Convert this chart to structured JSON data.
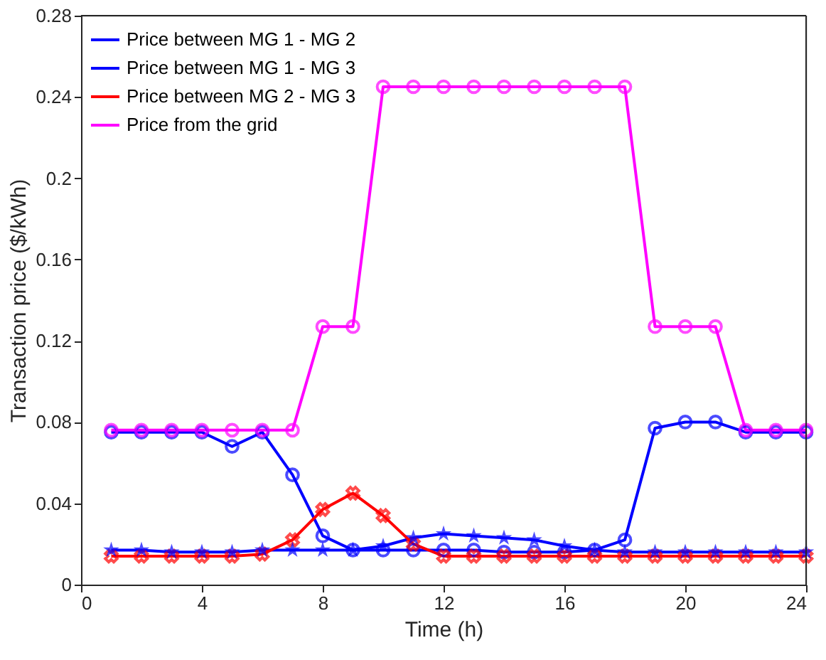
{
  "chart_data": {
    "type": "line",
    "xlabel": "Time (h)",
    "ylabel": "Transaction price ($/kWh)",
    "x": [
      1,
      2,
      3,
      4,
      5,
      6,
      7,
      8,
      9,
      10,
      11,
      12,
      13,
      14,
      15,
      16,
      17,
      18,
      19,
      20,
      21,
      22,
      23,
      24
    ],
    "xlim": [
      0,
      24
    ],
    "xticks": [
      0,
      4,
      8,
      12,
      16,
      20,
      24
    ],
    "ylim": [
      0,
      0.28
    ],
    "yticks": [
      0,
      0.04,
      0.08,
      0.12,
      0.16,
      0.2,
      0.24,
      0.28
    ],
    "grid": false,
    "legend": "top left",
    "line_style": "solid",
    "series": [
      {
        "name": "Price between MG 1 - MG 2",
        "color": "#0000ff",
        "marker": "circle",
        "values": [
          0.075,
          0.075,
          0.075,
          0.075,
          0.068,
          0.075,
          0.054,
          0.024,
          0.017,
          0.017,
          0.017,
          0.017,
          0.017,
          0.016,
          0.016,
          0.016,
          0.017,
          0.022,
          0.077,
          0.08,
          0.08,
          0.075,
          0.075,
          0.075
        ]
      },
      {
        "name": "Price between MG 1 - MG 3",
        "color": "#0000ff",
        "marker": "star",
        "values": [
          0.017,
          0.017,
          0.016,
          0.016,
          0.016,
          0.017,
          0.017,
          0.017,
          0.017,
          0.019,
          0.023,
          0.025,
          0.024,
          0.023,
          0.022,
          0.019,
          0.017,
          0.016,
          0.016,
          0.016,
          0.016,
          0.016,
          0.016,
          0.016
        ]
      },
      {
        "name": "Price between MG 2 - MG 3",
        "color": "#ff0000",
        "marker": "cross",
        "values": [
          0.014,
          0.014,
          0.014,
          0.014,
          0.014,
          0.015,
          0.022,
          0.037,
          0.045,
          0.034,
          0.02,
          0.014,
          0.014,
          0.014,
          0.014,
          0.014,
          0.014,
          0.014,
          0.014,
          0.014,
          0.014,
          0.014,
          0.014,
          0.014
        ]
      },
      {
        "name": "Price from the grid",
        "color": "#ff00ff",
        "marker": "circle",
        "values": [
          0.076,
          0.076,
          0.076,
          0.076,
          0.076,
          0.076,
          0.076,
          0.127,
          0.127,
          0.245,
          0.245,
          0.245,
          0.245,
          0.245,
          0.245,
          0.245,
          0.245,
          0.245,
          0.127,
          0.127,
          0.127,
          0.076,
          0.076,
          0.076
        ]
      }
    ]
  }
}
